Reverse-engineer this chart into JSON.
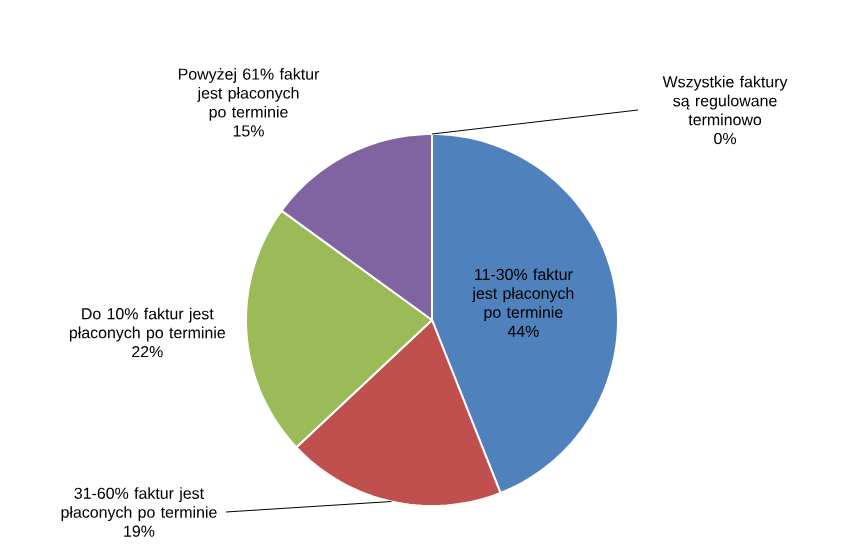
{
  "chart_data": {
    "type": "pie",
    "categories": [
      "Wszystkie faktury są regulowane terminowo",
      "11-30% faktur jest płaconych po terminie",
      "31-60% faktur jest płaconych po terminie",
      "Do 10% faktur jest płaconych po terminie",
      "Powyżej 61% faktur jest płaconych po terminie"
    ],
    "values": [
      0,
      44,
      19,
      22,
      15
    ],
    "colors": [
      "#4f81bd",
      "#4f81bd",
      "#c0504d",
      "#9bbb59",
      "#8064a2"
    ],
    "value_labels": [
      "0%",
      "44%",
      "19%",
      "22%",
      "15%"
    ]
  }
}
